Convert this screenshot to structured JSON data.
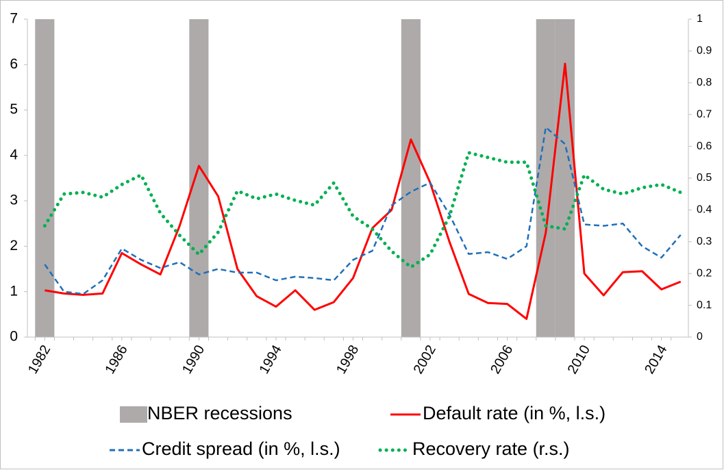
{
  "chart_data": {
    "type": "line",
    "x": [
      1982,
      1983,
      1984,
      1985,
      1986,
      1987,
      1988,
      1989,
      1990,
      1991,
      1992,
      1993,
      1994,
      1995,
      1996,
      1997,
      1998,
      1999,
      2000,
      2001,
      2002,
      2003,
      2004,
      2005,
      2006,
      2007,
      2008,
      2009,
      2010,
      2011,
      2012,
      2013,
      2014,
      2015
    ],
    "xlim": [
      1981.1,
      2015.4
    ],
    "xticks": [
      1982,
      1986,
      1990,
      1994,
      1998,
      2002,
      2006,
      2010,
      2014
    ],
    "ylim": [
      0,
      7
    ],
    "yticks": [
      0,
      1,
      2,
      3,
      4,
      5,
      6,
      7
    ],
    "y2lim": [
      0,
      1
    ],
    "y2ticks": [
      0,
      0.1,
      0.2,
      0.3,
      0.4,
      0.5,
      0.6,
      0.7,
      0.8,
      0.9,
      1
    ],
    "series": [
      {
        "name": "NBER recessions",
        "type": "bar",
        "color": "#aeaaaa",
        "x": [
          1982,
          1990,
          2001,
          2008,
          2009
        ],
        "values": [
          7,
          7,
          7,
          7,
          7
        ]
      },
      {
        "name": "Default rate (in %, l.s.)",
        "color": "#ff0000",
        "dash": "solid",
        "values": [
          1.03,
          0.96,
          0.93,
          0.96,
          1.85,
          1.6,
          1.38,
          2.45,
          3.77,
          3.1,
          1.5,
          0.9,
          0.67,
          1.03,
          0.6,
          0.77,
          1.3,
          2.4,
          2.8,
          4.35,
          3.4,
          2.1,
          0.95,
          0.75,
          0.73,
          0.4,
          2.3,
          6.02,
          1.4,
          0.92,
          1.43,
          1.45,
          1.05,
          1.22
        ]
      },
      {
        "name": "Credit spread (in %, l.s.)",
        "color": "#1f6fb8",
        "dash": "dashed",
        "values": [
          1.6,
          1.0,
          0.95,
          1.25,
          1.95,
          1.7,
          1.52,
          1.65,
          1.38,
          1.5,
          1.42,
          1.42,
          1.25,
          1.33,
          1.3,
          1.25,
          1.7,
          1.9,
          2.9,
          3.2,
          3.4,
          2.7,
          1.83,
          1.87,
          1.72,
          2.0,
          4.62,
          4.25,
          2.48,
          2.45,
          2.5,
          2.0,
          1.75,
          2.25
        ]
      },
      {
        "name": "Recovery rate (r.s.)",
        "color": "#00b050",
        "dash": "dotted",
        "axis": "y2",
        "values": [
          0.35,
          0.45,
          0.455,
          0.44,
          0.48,
          0.51,
          0.39,
          0.32,
          0.26,
          0.33,
          0.46,
          0.435,
          0.45,
          0.43,
          0.415,
          0.485,
          0.38,
          0.34,
          0.27,
          0.22,
          0.26,
          0.38,
          0.58,
          0.565,
          0.55,
          0.55,
          0.35,
          0.34,
          0.51,
          0.465,
          0.45,
          0.47,
          0.48,
          0.455
        ]
      }
    ]
  }
}
